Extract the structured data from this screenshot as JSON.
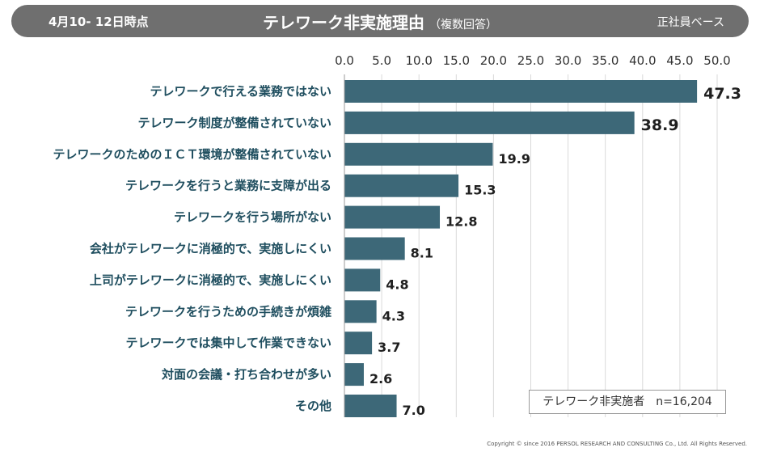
{
  "header": {
    "date": "4月10- 12日時点",
    "title": "テレワーク非実施理由",
    "title_note": "（複数回答）",
    "basis": "正社員ベース"
  },
  "legend_box": {
    "label": "テレワーク非実施者",
    "n": "n=16,204"
  },
  "copyright": "Copyright © since 2016 PERSOL RESEARCH AND CONSULTING Co., Ltd. All Rights Reserved.",
  "chart_data": {
    "type": "bar",
    "orientation": "horizontal",
    "title": "テレワーク非実施理由",
    "xlim": [
      0,
      50
    ],
    "ticks": [
      "0.0",
      "5.0",
      "10.0",
      "15.0",
      "20.0",
      "25.0",
      "30.0",
      "35.0",
      "40.0",
      "45.0",
      "50.0"
    ],
    "grid": true,
    "bar_color": "#3d6878",
    "categories": [
      "テレワークで行える業務ではない",
      "テレワーク制度が整備されていない",
      "テレワークのためのＩＣＴ環境が整備されていない",
      "テレワークを行うと業務に支障が出る",
      "テレワークを行う場所がない",
      "会社がテレワークに消極的で、実施しにくい",
      "上司がテレワークに消極的で、実施しにくい",
      "テレワークを行うための手続きが煩雑",
      "テレワークでは集中して作業できない",
      "対面の会議・打ち合わせが多い",
      "その他"
    ],
    "values": [
      47.3,
      38.9,
      19.9,
      15.3,
      12.8,
      8.1,
      4.8,
      4.3,
      3.7,
      2.6,
      7.0
    ],
    "value_labels": [
      "47.3",
      "38.9",
      "19.9",
      "15.3",
      "12.8",
      "8.1",
      "4.8",
      "4.3",
      "3.7",
      "2.6",
      "7.0"
    ]
  }
}
